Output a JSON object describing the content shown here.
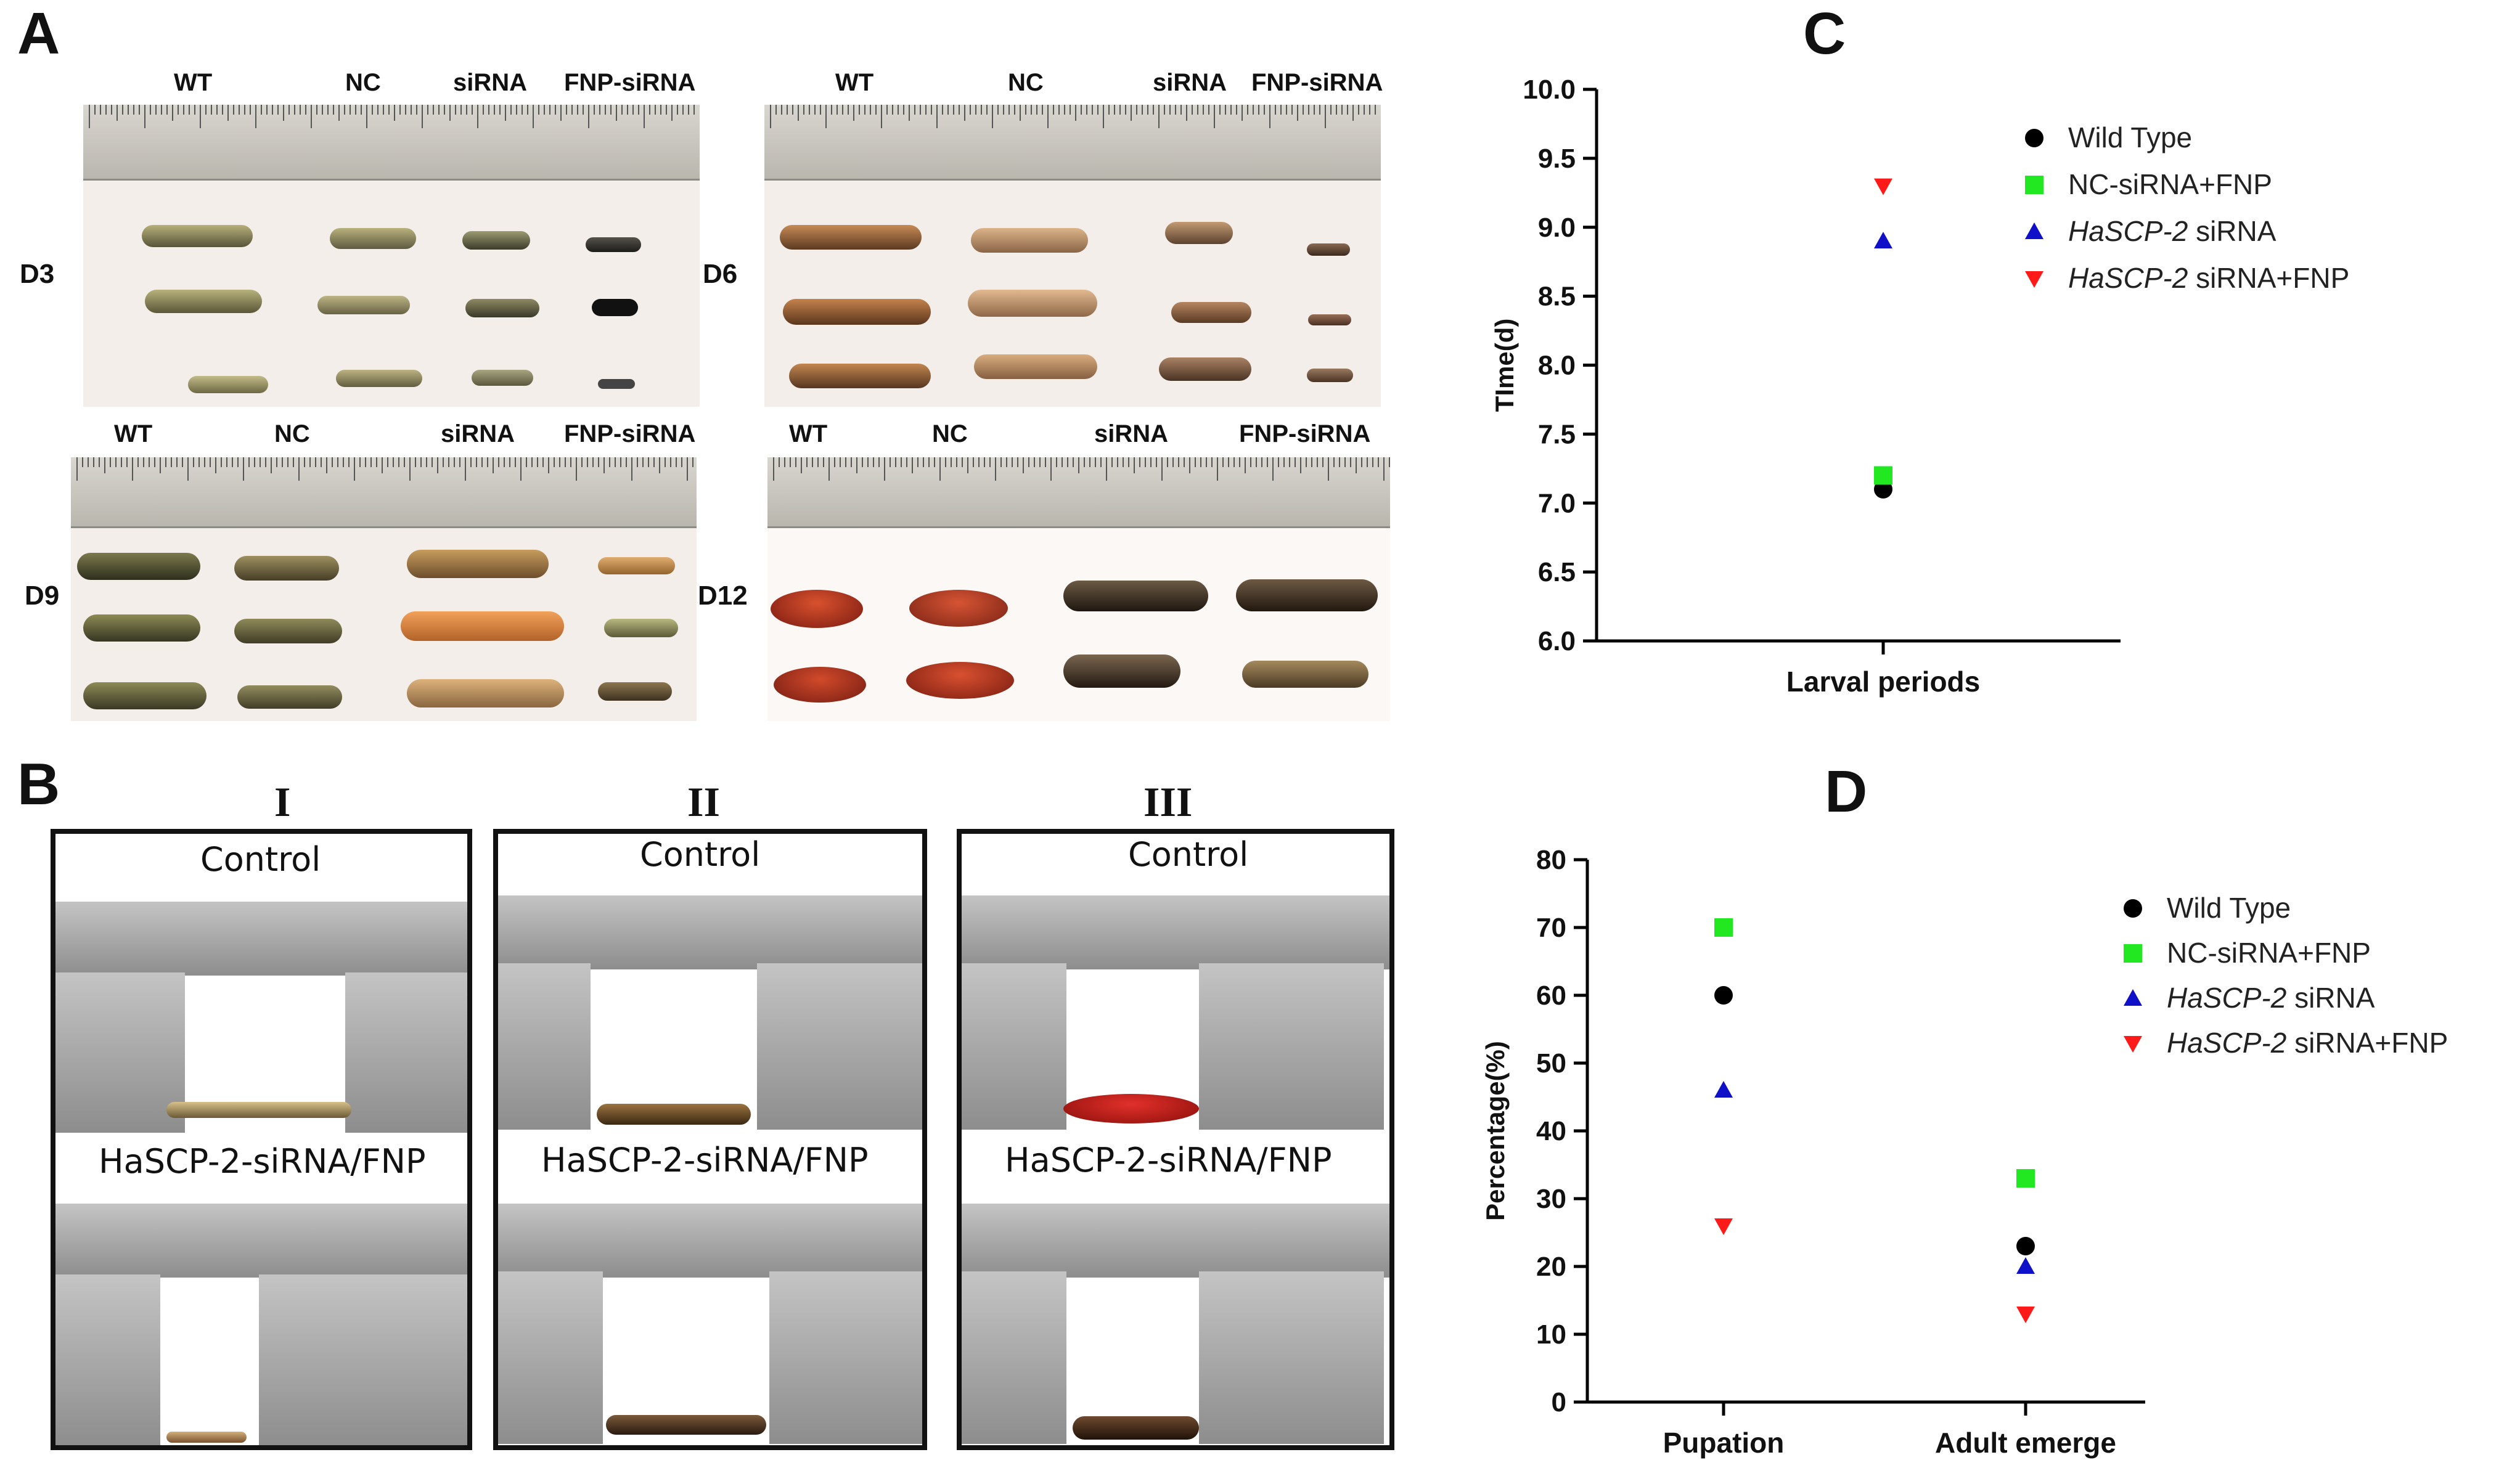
{
  "panels": {
    "A": "A",
    "B": "B",
    "C": "C",
    "D": "D"
  },
  "panel_a": {
    "groups": [
      "WT",
      "NC",
      "siRNA",
      "FNP-siRNA"
    ],
    "days": [
      "D3",
      "D6",
      "D9",
      "D12"
    ]
  },
  "panel_b": {
    "columns": [
      {
        "numeral": "I",
        "top_label": "Control",
        "bottom_label": "HaSCP-2-siRNA/FNP"
      },
      {
        "numeral": "II",
        "top_label": "Control",
        "bottom_label": "HaSCP-2-siRNA/FNP"
      },
      {
        "numeral": "III",
        "top_label": "Control",
        "bottom_label": "HaSCP-2-siRNA/FNP"
      }
    ]
  },
  "legend": [
    {
      "prefix": "",
      "italic": "",
      "text": "Wild Type",
      "marker": "circle",
      "color": "#000000"
    },
    {
      "prefix": "NC-siRNA+FNP",
      "italic": "",
      "text": "",
      "marker": "square",
      "color": "#22e822"
    },
    {
      "prefix": "",
      "italic": "HaSCP-2",
      "text": " siRNA",
      "marker": "triangle-up",
      "color": "#1010c8"
    },
    {
      "prefix": "",
      "italic": "HaSCP-2",
      "text": " siRNA+FNP",
      "marker": "triangle-down",
      "color": "#ff1a1a"
    }
  ],
  "chart_data": [
    {
      "type": "scatter",
      "panel": "C",
      "title": "",
      "xlabel": "",
      "ylabel": "TIme(d)",
      "categories": [
        "Larval periods"
      ],
      "ylim": [
        6.0,
        10.0
      ],
      "yticks": [
        "6.0",
        "6.5",
        "7.0",
        "7.5",
        "8.0",
        "8.5",
        "9.0",
        "9.5",
        "10.0"
      ],
      "series": [
        {
          "name": "Wild Type",
          "values": [
            7.1
          ]
        },
        {
          "name": "NC-siRNA+FNP",
          "values": [
            7.2
          ]
        },
        {
          "name": "HaSCP-2 siRNA",
          "values": [
            8.9
          ]
        },
        {
          "name": "HaSCP-2 siRNA+FNP",
          "values": [
            9.3
          ]
        }
      ]
    },
    {
      "type": "scatter",
      "panel": "D",
      "title": "",
      "xlabel": "",
      "ylabel": "Percentage(%)",
      "categories": [
        "Pupation",
        "Adult emerge"
      ],
      "ylim": [
        0,
        80
      ],
      "yticks": [
        "0",
        "10",
        "20",
        "30",
        "40",
        "50",
        "60",
        "70",
        "80"
      ],
      "series": [
        {
          "name": "Wild Type",
          "values": [
            60,
            23
          ]
        },
        {
          "name": "NC-siRNA+FNP",
          "values": [
            70,
            33
          ]
        },
        {
          "name": "HaSCP-2 siRNA",
          "values": [
            46,
            20
          ]
        },
        {
          "name": "HaSCP-2 siRNA+FNP",
          "values": [
            26,
            13
          ]
        }
      ]
    }
  ]
}
